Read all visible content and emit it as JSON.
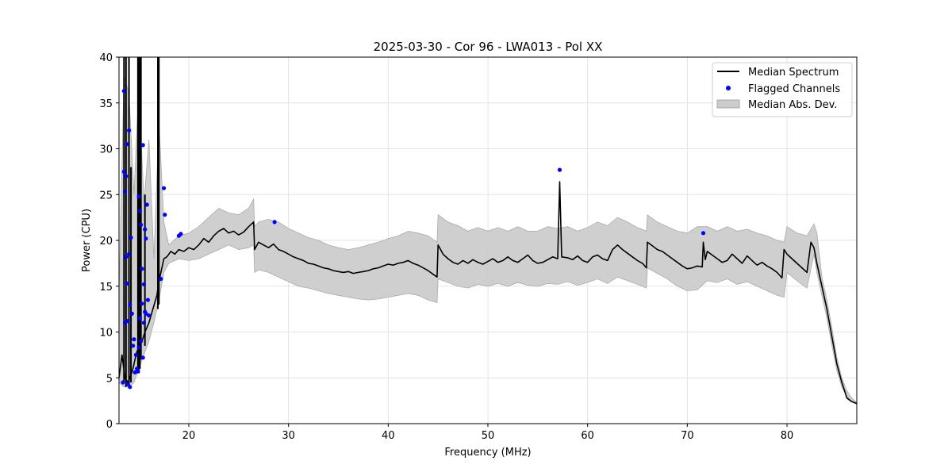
{
  "chart_data": {
    "type": "line",
    "title": "2025-03-30 - Cor 96 - LWA013 - Pol XX",
    "xlabel": "Frequency (MHz)",
    "ylabel": "Power (CPU)",
    "xlim": [
      13,
      87
    ],
    "ylim": [
      0,
      40
    ],
    "xticks": [
      20,
      30,
      40,
      50,
      60,
      70,
      80
    ],
    "yticks": [
      0,
      5,
      10,
      15,
      20,
      25,
      30,
      35,
      40
    ],
    "grid": true,
    "legend_position": "top-right",
    "series": [
      {
        "name": "Median Spectrum",
        "kind": "line",
        "color": "#000000",
        "x": [
          13.0,
          13.3,
          13.6,
          13.9,
          14.1,
          14.4,
          14.7,
          15.0,
          15.3,
          15.6,
          16.0,
          16.4,
          16.8,
          17.0,
          17.2,
          17.5,
          17.8,
          18.2,
          18.6,
          19.0,
          19.5,
          20.0,
          20.5,
          21.0,
          21.5,
          22.0,
          22.5,
          23.0,
          23.5,
          24.0,
          24.5,
          25.0,
          25.5,
          26.0,
          26.5,
          26.6,
          27.0,
          27.5,
          28.0,
          28.5,
          29.0,
          29.5,
          30.0,
          30.5,
          31.0,
          31.5,
          32.0,
          32.5,
          33.0,
          33.5,
          34.0,
          34.5,
          35.0,
          35.5,
          36.0,
          36.5,
          37.0,
          37.5,
          38.0,
          38.5,
          39.0,
          39.5,
          40.0,
          40.5,
          41.0,
          41.5,
          42.0,
          42.5,
          43.0,
          43.5,
          44.0,
          44.5,
          44.9,
          45.0,
          45.5,
          46.0,
          46.5,
          47.0,
          47.5,
          48.0,
          48.5,
          49.0,
          49.5,
          50.0,
          50.5,
          51.0,
          51.5,
          52.0,
          52.5,
          53.0,
          53.5,
          54.0,
          54.5,
          55.0,
          55.5,
          56.0,
          56.5,
          57.0,
          57.2,
          57.4,
          58.0,
          58.5,
          59.0,
          59.5,
          60.0,
          60.5,
          61.0,
          61.5,
          62.0,
          62.5,
          63.0,
          63.5,
          64.0,
          64.5,
          65.0,
          65.5,
          65.9,
          66.0,
          66.5,
          67.0,
          67.5,
          68.0,
          68.5,
          69.0,
          69.5,
          70.0,
          70.5,
          71.0,
          71.5,
          71.6,
          71.8,
          72.0,
          72.5,
          73.0,
          73.5,
          74.0,
          74.5,
          75.0,
          75.5,
          76.0,
          76.5,
          77.0,
          77.5,
          78.0,
          78.5,
          79.0,
          79.5,
          79.7,
          80.0,
          80.5,
          81.0,
          81.5,
          82.0,
          82.4,
          82.7,
          83.0,
          83.5,
          84.0,
          84.5,
          85.0,
          85.5,
          85.8,
          86.0,
          86.5,
          87.0
        ],
        "y": [
          5.0,
          7.5,
          5.0,
          4.5,
          5.0,
          6.0,
          7.5,
          8.5,
          9.0,
          10.0,
          11.0,
          12.5,
          14.0,
          15.5,
          16.5,
          18.0,
          18.2,
          18.8,
          18.5,
          19.0,
          18.8,
          19.2,
          19.0,
          19.5,
          20.2,
          19.8,
          20.5,
          21.0,
          21.3,
          20.8,
          21.0,
          20.6,
          20.9,
          21.5,
          22.0,
          19.0,
          19.8,
          19.5,
          19.2,
          19.6,
          19.0,
          18.8,
          18.5,
          18.2,
          18.0,
          17.8,
          17.5,
          17.4,
          17.2,
          17.0,
          16.9,
          16.7,
          16.6,
          16.5,
          16.6,
          16.4,
          16.5,
          16.6,
          16.7,
          16.9,
          17.0,
          17.2,
          17.4,
          17.3,
          17.5,
          17.6,
          17.8,
          17.5,
          17.3,
          17.0,
          16.7,
          16.3,
          16.0,
          19.5,
          18.5,
          18.0,
          17.6,
          17.4,
          17.8,
          17.5,
          17.9,
          17.6,
          17.4,
          17.7,
          18.0,
          17.6,
          17.8,
          18.2,
          17.8,
          17.6,
          18.0,
          18.4,
          17.8,
          17.5,
          17.6,
          17.9,
          18.2,
          18.0,
          26.4,
          18.2,
          18.1,
          17.9,
          18.3,
          17.8,
          17.6,
          18.2,
          18.4,
          18.0,
          17.8,
          19.0,
          19.5,
          19.0,
          18.6,
          18.2,
          17.8,
          17.5,
          17.0,
          19.8,
          19.4,
          19.0,
          18.8,
          18.4,
          18.0,
          17.6,
          17.2,
          16.9,
          17.0,
          17.2,
          17.1,
          19.8,
          17.9,
          18.8,
          18.4,
          18.0,
          17.6,
          17.8,
          18.5,
          18.0,
          17.5,
          18.3,
          17.8,
          17.3,
          17.6,
          17.2,
          16.9,
          16.5,
          15.9,
          19.0,
          18.5,
          18.0,
          17.5,
          17.0,
          16.5,
          19.8,
          19.2,
          17.5,
          15.0,
          12.5,
          9.5,
          6.5,
          4.5,
          3.5,
          2.8,
          2.4,
          2.2
        ]
      },
      {
        "name": "Flagged Channels",
        "kind": "scatter",
        "color": "#0000ff",
        "x": [
          13.4,
          13.5,
          13.5,
          13.6,
          13.6,
          13.7,
          13.7,
          13.8,
          13.8,
          13.9,
          13.9,
          14.0,
          14.0,
          14.1,
          14.1,
          14.2,
          14.3,
          14.4,
          14.5,
          14.6,
          14.7,
          14.8,
          14.9,
          15.0,
          15.0,
          15.1,
          15.1,
          15.2,
          15.2,
          15.3,
          15.3,
          15.4,
          15.4,
          15.5,
          15.5,
          15.6,
          15.6,
          15.7,
          15.7,
          15.8,
          15.9,
          16.0,
          17.2,
          17.5,
          17.6,
          19.0,
          19.2,
          28.6,
          57.2,
          71.6
        ],
        "y": [
          4.5,
          27.5,
          36.3,
          25.3,
          11.0,
          27.0,
          18.2,
          30.5,
          15.3,
          11.2,
          4.3,
          32.0,
          18.5,
          13.0,
          4.0,
          20.3,
          12.0,
          8.5,
          9.2,
          5.6,
          7.5,
          6.0,
          5.7,
          8.3,
          24.8,
          11.5,
          23.2,
          21.7,
          9.0,
          16.9,
          13.1,
          30.4,
          7.2,
          15.2,
          11.0,
          21.2,
          12.2,
          20.2,
          12.0,
          23.9,
          13.5,
          11.8,
          15.8,
          25.7,
          22.8,
          20.5,
          20.7,
          22.0,
          27.7,
          20.8
        ]
      },
      {
        "name": "Median Abs. Dev.",
        "kind": "band",
        "color": "#cccccc",
        "x": [
          13.0,
          13.5,
          14.0,
          14.5,
          15.0,
          15.5,
          16.0,
          16.5,
          17.0,
          17.5,
          18.0,
          19.0,
          20.0,
          21.0,
          22.0,
          23.0,
          24.0,
          25.0,
          26.0,
          26.5,
          26.6,
          27.0,
          28.0,
          29.0,
          30.0,
          31.0,
          32.0,
          33.0,
          34.0,
          35.0,
          36.0,
          37.0,
          38.0,
          39.0,
          40.0,
          41.0,
          42.0,
          43.0,
          44.0,
          44.9,
          45.0,
          46.0,
          47.0,
          48.0,
          49.0,
          50.0,
          51.0,
          52.0,
          53.0,
          54.0,
          55.0,
          56.0,
          57.0,
          58.0,
          59.0,
          60.0,
          61.0,
          62.0,
          63.0,
          64.0,
          65.0,
          65.9,
          66.0,
          67.0,
          68.0,
          69.0,
          70.0,
          71.0,
          72.0,
          73.0,
          74.0,
          75.0,
          76.0,
          77.0,
          78.0,
          79.0,
          79.7,
          80.0,
          81.0,
          82.0,
          82.7,
          83.0,
          83.5,
          84.0,
          84.5,
          85.0,
          85.5,
          86.0,
          86.5,
          87.0
        ],
        "lower": [
          4.5,
          4.0,
          4.0,
          4.5,
          6.0,
          7.5,
          9.0,
          11.0,
          13.5,
          16.5,
          17.5,
          18.0,
          17.8,
          18.0,
          18.5,
          19.0,
          19.5,
          19.0,
          19.2,
          19.5,
          16.5,
          16.8,
          16.5,
          16.0,
          15.5,
          15.0,
          14.8,
          14.5,
          14.2,
          14.0,
          13.8,
          13.6,
          13.5,
          13.6,
          13.8,
          14.0,
          14.2,
          14.0,
          13.5,
          13.2,
          15.8,
          15.4,
          15.0,
          14.8,
          15.2,
          15.0,
          15.3,
          15.0,
          15.4,
          15.1,
          15.0,
          15.3,
          15.2,
          15.5,
          15.1,
          15.4,
          15.8,
          15.3,
          16.0,
          15.6,
          15.2,
          14.8,
          17.0,
          16.4,
          15.8,
          15.0,
          14.5,
          14.6,
          15.6,
          15.4,
          15.8,
          15.2,
          15.5,
          15.0,
          14.5,
          14.0,
          13.8,
          16.5,
          15.6,
          14.8,
          18.5,
          16.5,
          14.0,
          11.5,
          8.5,
          5.8,
          4.0,
          3.0,
          2.4,
          2.1
        ],
        "upper": [
          14.0,
          38.0,
          36.0,
          25.0,
          37.0,
          24.0,
          31.0,
          18.0,
          33.0,
          22.0,
          19.5,
          20.5,
          20.8,
          21.5,
          22.5,
          23.5,
          23.0,
          22.8,
          23.5,
          24.5,
          21.5,
          22.0,
          22.3,
          22.0,
          21.3,
          20.8,
          20.3,
          20.0,
          19.5,
          19.2,
          19.0,
          19.2,
          19.5,
          19.8,
          20.2,
          20.5,
          21.0,
          20.8,
          20.5,
          19.8,
          22.8,
          22.0,
          21.6,
          21.0,
          21.4,
          21.0,
          21.4,
          21.0,
          21.5,
          21.0,
          21.0,
          21.5,
          21.3,
          21.5,
          21.0,
          21.4,
          22.0,
          21.6,
          22.5,
          22.0,
          21.4,
          21.0,
          22.8,
          22.0,
          21.5,
          21.0,
          20.8,
          21.5,
          21.5,
          21.0,
          21.5,
          21.0,
          21.2,
          20.8,
          20.5,
          20.0,
          19.8,
          21.5,
          20.8,
          20.5,
          21.8,
          20.8,
          16.0,
          13.5,
          10.5,
          7.2,
          5.0,
          3.6,
          2.8,
          2.3
        ]
      }
    ]
  }
}
